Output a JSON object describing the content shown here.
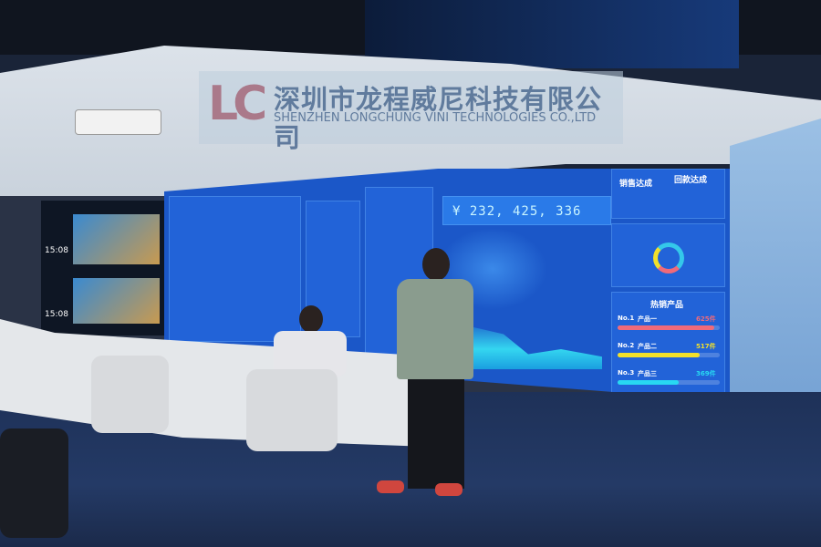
{
  "watermark": {
    "logo": "LC",
    "company_cn": "深圳市龙程威尼科技有限公司",
    "company_en": "SHENZHEN LONGCHUNG VINI TECHNOLOGIES CO.,LTD"
  },
  "dashboard": {
    "total_amount": "¥ 232, 425, 336",
    "sales_achieved": "销售达成",
    "payment_achieved": "回款达成",
    "hot_products": "热销产品",
    "products": [
      {
        "rank": "No.1",
        "name": "产品一",
        "value": "625件",
        "fill": 0.95,
        "color": "#f06a7a"
      },
      {
        "rank": "No.2",
        "name": "产品二",
        "value": "517件",
        "fill": 0.8,
        "color": "#f2e02a"
      },
      {
        "rank": "No.3",
        "name": "产品三",
        "value": "369件",
        "fill": 0.6,
        "color": "#28d8f2"
      }
    ]
  },
  "side_screens": {
    "clock1": "15:08",
    "clock2": "15:08"
  }
}
